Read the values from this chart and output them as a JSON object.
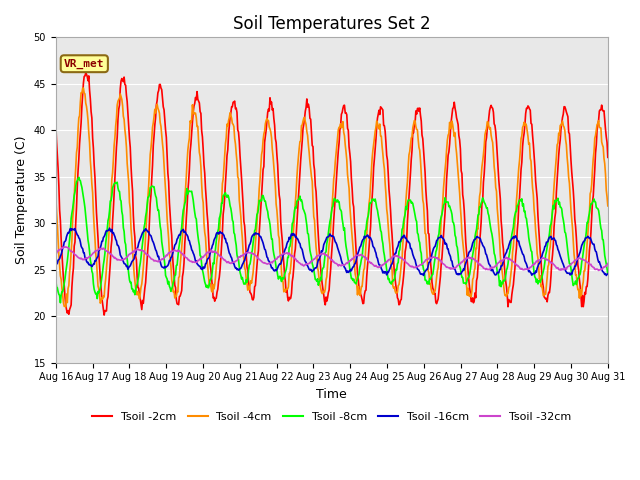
{
  "title": "Soil Temperatures Set 2",
  "xlabel": "Time",
  "ylabel": "Soil Temperature (C)",
  "ylim": [
    15,
    50
  ],
  "yticks": [
    15,
    20,
    25,
    30,
    35,
    40,
    45,
    50
  ],
  "x_labels": [
    "Aug 16",
    "Aug 17",
    "Aug 18",
    "Aug 19",
    "Aug 20",
    "Aug 21",
    "Aug 22",
    "Aug 23",
    "Aug 24",
    "Aug 25",
    "Aug 26",
    "Aug 27",
    "Aug 28",
    "Aug 29",
    "Aug 30",
    "Aug 31"
  ],
  "annotation_text": "VR_met",
  "annotation_color": "#8B0000",
  "annotation_bg": "#FFFF99",
  "annotation_edge": "#8B6914",
  "bg_color": "#E8E8E8",
  "lines": {
    "Tsoil -2cm": {
      "color": "#FF0000",
      "lw": 1.2
    },
    "Tsoil -4cm": {
      "color": "#FF8C00",
      "lw": 1.2
    },
    "Tsoil -8cm": {
      "color": "#00FF00",
      "lw": 1.2
    },
    "Tsoil -16cm": {
      "color": "#0000CD",
      "lw": 1.2
    },
    "Tsoil -32cm": {
      "color": "#CC44CC",
      "lw": 1.2
    }
  },
  "title_fontsize": 12,
  "axis_fontsize": 9,
  "tick_fontsize": 7,
  "legend_fontsize": 8
}
